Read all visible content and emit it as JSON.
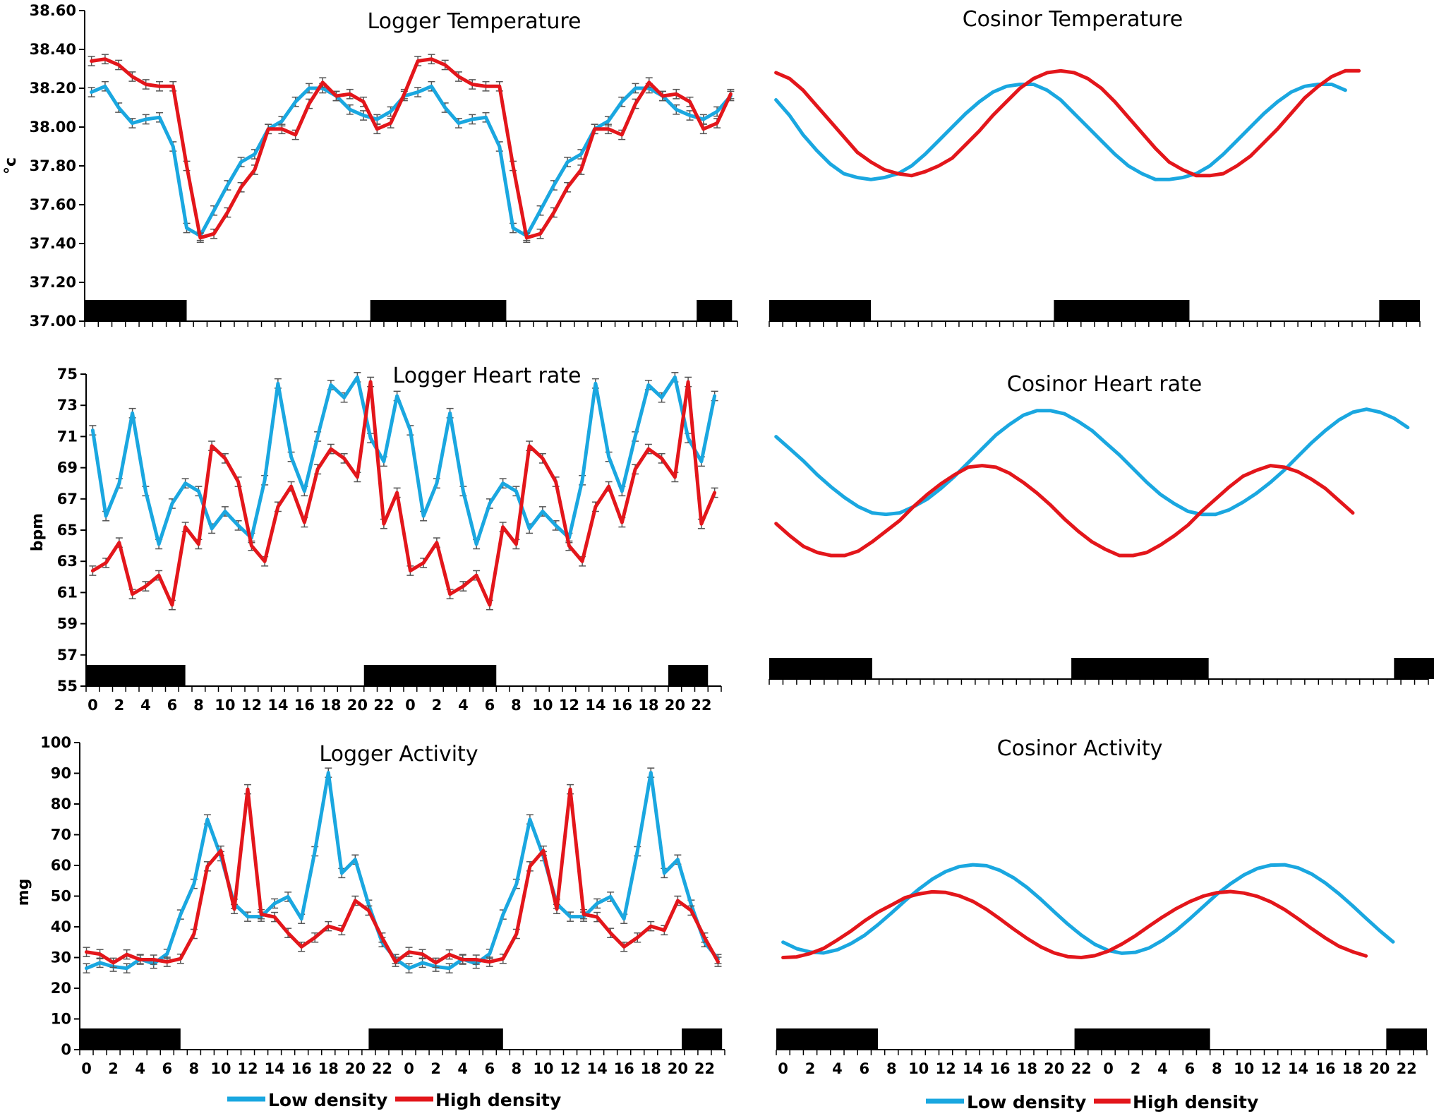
{
  "colors": {
    "low": "#1aa7e0",
    "high": "#e3161b",
    "err": "#555555",
    "axis": "#000000"
  },
  "legend": {
    "low": "Low density",
    "high": "High density"
  },
  "x_ticks": [
    "0",
    "2",
    "4",
    "6",
    "8",
    "10",
    "12",
    "14",
    "16",
    "18",
    "20",
    "22",
    "0",
    "2",
    "4",
    "6",
    "8",
    "10",
    "12",
    "14",
    "16",
    "18",
    "20",
    "22"
  ],
  "chart_data": [
    {
      "id": "logger-temp",
      "type": "line",
      "title": "Logger Temperature",
      "ylabel": "°c",
      "ylim": [
        37.0,
        38.6
      ],
      "yticks": [
        "37.00",
        "37.20",
        "37.40",
        "37.60",
        "37.80",
        "38.00",
        "38.20",
        "38.40",
        "38.60"
      ],
      "hours": [
        0,
        1,
        2,
        3,
        4,
        5,
        6,
        7,
        8,
        9,
        10,
        11,
        12,
        13,
        14,
        15,
        16,
        17,
        18,
        19,
        20,
        21,
        22,
        23,
        0,
        1,
        2,
        3,
        4,
        5,
        6,
        7,
        8,
        9,
        10,
        11,
        12,
        13,
        14,
        15,
        16,
        17,
        18,
        19,
        20,
        21,
        22,
        23
      ],
      "error_bars": true,
      "dark_periods": [
        [
          0,
          7.5
        ],
        [
          21,
          31
        ],
        [
          45,
          47.6
        ]
      ],
      "series": [
        {
          "name": "Low density",
          "values": [
            38.18,
            38.21,
            38.1,
            38.02,
            38.04,
            38.05,
            37.9,
            37.48,
            37.44,
            37.57,
            37.7,
            37.82,
            37.86,
            37.99,
            38.03,
            38.13,
            38.2,
            38.2,
            38.16,
            38.09,
            38.06,
            38.04,
            38.08,
            38.16,
            38.18,
            38.21,
            38.1,
            38.02,
            38.04,
            38.05,
            37.9,
            37.48,
            37.44,
            37.57,
            37.7,
            37.82,
            37.86,
            37.99,
            38.03,
            38.13,
            38.2,
            38.2,
            38.16,
            38.09,
            38.06,
            38.04,
            38.08,
            38.16
          ]
        },
        {
          "name": "High density",
          "values": [
            38.34,
            38.35,
            38.32,
            38.26,
            38.22,
            38.21,
            38.21,
            37.8,
            37.43,
            37.45,
            37.56,
            37.69,
            37.78,
            37.99,
            37.99,
            37.96,
            38.12,
            38.23,
            38.16,
            38.17,
            38.13,
            37.99,
            38.02,
            38.17,
            38.34,
            38.35,
            38.32,
            38.26,
            38.22,
            38.21,
            38.21,
            37.8,
            37.43,
            37.45,
            37.56,
            37.69,
            37.78,
            37.99,
            37.99,
            37.96,
            38.12,
            38.23,
            38.16,
            38.17,
            38.13,
            37.99,
            38.02,
            38.17
          ]
        }
      ]
    },
    {
      "id": "cosinor-temp",
      "type": "line",
      "title": "Cosinor Temperature",
      "ylim": [
        37.0,
        38.6
      ],
      "error_bars": false,
      "dark_periods": [
        [
          0,
          7.5
        ],
        [
          21,
          31
        ],
        [
          45,
          48
        ]
      ],
      "series": [
        {
          "name": "Low density",
          "values": [
            38.14,
            38.06,
            37.96,
            37.88,
            37.81,
            37.76,
            37.74,
            37.73,
            37.74,
            37.76,
            37.8,
            37.86,
            37.93,
            38.0,
            38.07,
            38.13,
            38.18,
            38.21,
            38.22,
            38.22,
            38.19,
            38.14,
            38.07,
            38.0,
            37.93,
            37.86,
            37.8,
            37.76,
            37.73,
            37.73,
            37.74,
            37.76,
            37.8,
            37.86,
            37.93,
            38.0,
            38.07,
            38.13,
            38.18,
            38.21,
            38.22,
            38.22,
            38.19
          ]
        },
        {
          "name": "High density",
          "values": [
            38.28,
            38.25,
            38.19,
            38.11,
            38.03,
            37.95,
            37.87,
            37.82,
            37.78,
            37.76,
            37.75,
            37.77,
            37.8,
            37.84,
            37.91,
            37.98,
            38.06,
            38.13,
            38.2,
            38.25,
            38.28,
            38.29,
            38.28,
            38.25,
            38.2,
            38.13,
            38.05,
            37.97,
            37.89,
            37.82,
            37.78,
            37.75,
            37.75,
            37.76,
            37.8,
            37.85,
            37.92,
            37.99,
            38.07,
            38.15,
            38.21,
            38.26,
            38.29,
            38.29
          ]
        }
      ]
    },
    {
      "id": "logger-hr",
      "type": "line",
      "title": "Logger Heart rate",
      "ylabel": "bpm",
      "ylim": [
        55,
        75
      ],
      "yticks": [
        "55",
        "57",
        "59",
        "61",
        "63",
        "65",
        "67",
        "69",
        "71",
        "73",
        "75"
      ],
      "hours": [
        0,
        1,
        2,
        3,
        4,
        5,
        6,
        7,
        8,
        9,
        10,
        11,
        12,
        13,
        14,
        15,
        16,
        17,
        18,
        19,
        20,
        21,
        22,
        23,
        0,
        1,
        2,
        3,
        4,
        5,
        6,
        7,
        8,
        9,
        10,
        11,
        12,
        13,
        14,
        15,
        16,
        17,
        18,
        19,
        20,
        21,
        22,
        23
      ],
      "error_bars": true,
      "dark_periods": [
        [
          0,
          7.5
        ],
        [
          21,
          31
        ],
        [
          44,
          47
        ]
      ],
      "series": [
        {
          "name": "Low density",
          "values": [
            71.4,
            65.9,
            68.0,
            72.5,
            67.5,
            64.1,
            66.7,
            68.0,
            67.5,
            65.1,
            66.2,
            65.3,
            64.5,
            68.2,
            74.4,
            69.7,
            67.5,
            71.0,
            74.3,
            73.5,
            74.8,
            70.9,
            69.4,
            73.6,
            71.4,
            65.9,
            68.0,
            72.5,
            67.5,
            64.1,
            66.7,
            68.0,
            67.5,
            65.1,
            66.2,
            65.3,
            64.5,
            68.2,
            74.4,
            69.7,
            67.5,
            71.0,
            74.3,
            73.5,
            74.8,
            70.9,
            69.4,
            73.6
          ]
        },
        {
          "name": "High density",
          "values": [
            62.4,
            62.9,
            64.2,
            60.9,
            61.4,
            62.1,
            60.2,
            65.2,
            64.1,
            70.4,
            69.6,
            68.1,
            64.0,
            63.0,
            66.5,
            67.8,
            65.5,
            68.9,
            70.2,
            69.6,
            68.4,
            74.5,
            65.4,
            67.4,
            62.4,
            62.9,
            64.2,
            60.9,
            61.4,
            62.1,
            60.2,
            65.2,
            64.1,
            70.4,
            69.6,
            68.1,
            64.0,
            63.0,
            66.5,
            67.8,
            65.5,
            68.9,
            70.2,
            69.6,
            68.4,
            74.5,
            65.4,
            67.4
          ]
        }
      ]
    },
    {
      "id": "cosinor-hr",
      "type": "line",
      "title": "Cosinor Heart rate",
      "ylim": [
        55,
        75
      ],
      "error_bars": false,
      "dark_periods": [
        [
          0,
          7.5
        ],
        [
          22,
          32
        ],
        [
          45.5,
          48.5
        ]
      ],
      "series": [
        {
          "name": "Low density",
          "values": [
            70.9,
            70.1,
            69.3,
            68.4,
            67.6,
            66.9,
            66.3,
            65.9,
            65.8,
            65.9,
            66.3,
            66.8,
            67.5,
            68.3,
            69.2,
            70.1,
            71.0,
            71.7,
            72.3,
            72.6,
            72.6,
            72.4,
            71.9,
            71.3,
            70.5,
            69.7,
            68.8,
            67.9,
            67.1,
            66.5,
            66.0,
            65.8,
            65.8,
            66.1,
            66.6,
            67.2,
            67.9,
            68.7,
            69.6,
            70.5,
            71.3,
            72.0,
            72.5,
            72.7,
            72.5,
            72.1,
            71.5
          ]
        },
        {
          "name": "High density",
          "values": [
            65.2,
            64.4,
            63.7,
            63.3,
            63.1,
            63.1,
            63.4,
            64.0,
            64.7,
            65.4,
            66.3,
            67.1,
            67.8,
            68.4,
            68.9,
            69.0,
            68.9,
            68.5,
            67.9,
            67.2,
            66.4,
            65.5,
            64.7,
            64.0,
            63.5,
            63.1,
            63.1,
            63.3,
            63.8,
            64.4,
            65.1,
            66.0,
            66.8,
            67.6,
            68.3,
            68.7,
            69.0,
            68.9,
            68.6,
            68.1,
            67.5,
            66.7,
            65.9
          ]
        }
      ]
    },
    {
      "id": "logger-act",
      "type": "line",
      "title": "Logger Activity",
      "ylabel": "mg",
      "ylim": [
        0,
        100
      ],
      "yticks": [
        "0",
        "10",
        "20",
        "30",
        "40",
        "50",
        "60",
        "70",
        "80",
        "90",
        "100"
      ],
      "hours": [
        0,
        1,
        2,
        3,
        4,
        5,
        6,
        7,
        8,
        9,
        10,
        11,
        12,
        13,
        14,
        15,
        16,
        17,
        18,
        19,
        20,
        21,
        22,
        23,
        0,
        1,
        2,
        3,
        4,
        5,
        6,
        7,
        8,
        9,
        10,
        11,
        12,
        13,
        14,
        15,
        16,
        17,
        18,
        19,
        20,
        21,
        22,
        23
      ],
      "error_bars": true,
      "dark_periods": [
        [
          0,
          7.5
        ],
        [
          21.5,
          31.5
        ],
        [
          44.8,
          47.8
        ]
      ],
      "series": [
        {
          "name": "Low density",
          "values": [
            26.5,
            28.3,
            27.0,
            26.5,
            29.5,
            28.0,
            31.2,
            44.0,
            54.0,
            75.0,
            63.0,
            47.5,
            43.3,
            43.3,
            47.6,
            49.8,
            42.6,
            64.6,
            90.2,
            57.5,
            61.9,
            47.2,
            35.0,
            29.5,
            26.5,
            28.3,
            27.0,
            26.5,
            29.5,
            28.0,
            31.2,
            44.0,
            54.0,
            75.0,
            63.0,
            47.5,
            43.3,
            43.3,
            47.6,
            49.8,
            42.6,
            64.6,
            90.2,
            57.5,
            61.9,
            47.2,
            35.0,
            29.5
          ]
        },
        {
          "name": "High density",
          "values": [
            31.8,
            31.1,
            28.3,
            31.0,
            29.3,
            29.3,
            28.6,
            29.6,
            37.7,
            59.7,
            64.8,
            45.8,
            84.8,
            44.1,
            43.2,
            38.0,
            33.5,
            36.5,
            40.2,
            38.9,
            48.5,
            45.3,
            36.5,
            28.6,
            31.8,
            31.1,
            28.3,
            31.0,
            29.3,
            29.3,
            28.6,
            29.6,
            37.7,
            59.7,
            64.8,
            45.8,
            84.8,
            44.1,
            43.2,
            38.0,
            33.5,
            36.5,
            40.2,
            38.9,
            48.5,
            45.3,
            36.5,
            28.6
          ]
        }
      ]
    },
    {
      "id": "cosinor-act",
      "type": "line",
      "title": "Cosinor Activity",
      "ylim": [
        0,
        100
      ],
      "error_bars": false,
      "dark_periods": [
        [
          0,
          7.5
        ],
        [
          22,
          32
        ],
        [
          45,
          48
        ]
      ],
      "series": [
        {
          "name": "Low density",
          "values": [
            35.0,
            32.9,
            31.8,
            31.5,
            32.5,
            34.5,
            37.2,
            40.7,
            44.5,
            48.5,
            52.2,
            55.5,
            58.0,
            59.6,
            60.2,
            59.9,
            58.4,
            56.0,
            52.8,
            49.0,
            44.9,
            40.9,
            37.3,
            34.3,
            32.3,
            31.4,
            31.7,
            33.1,
            35.6,
            38.8,
            42.6,
            46.6,
            50.6,
            54.0,
            56.9,
            59.0,
            60.1,
            60.2,
            59.2,
            57.2,
            54.3,
            50.8,
            46.9,
            42.8,
            38.8,
            35.1
          ]
        },
        {
          "name": "High density",
          "values": [
            30.0,
            30.2,
            31.3,
            33.0,
            35.7,
            38.6,
            41.9,
            44.8,
            47.1,
            49.5,
            50.7,
            51.4,
            51.2,
            50.1,
            48.3,
            45.7,
            42.6,
            39.3,
            36.2,
            33.5,
            31.5,
            30.3,
            30.0,
            30.6,
            32.1,
            34.4,
            37.1,
            40.2,
            43.2,
            45.9,
            48.2,
            50.0,
            51.1,
            51.5,
            51.0,
            49.9,
            48.1,
            45.6,
            42.6,
            39.4,
            36.4,
            33.7,
            31.9,
            30.5
          ]
        }
      ]
    }
  ]
}
